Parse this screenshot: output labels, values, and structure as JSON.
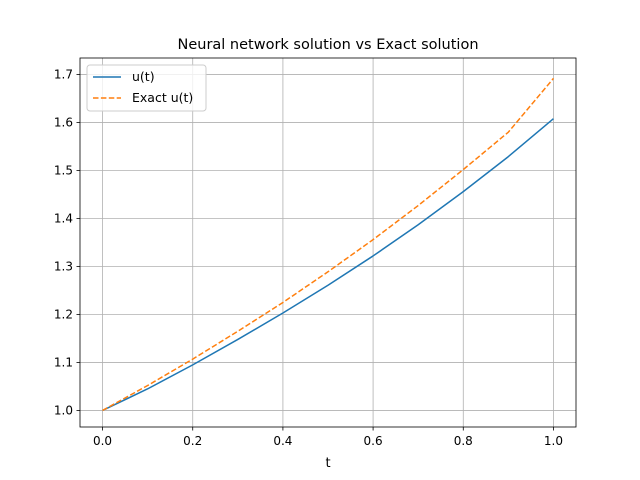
{
  "chart_data": {
    "type": "line",
    "title": "Neural network solution vs Exact solution",
    "xlabel": "t",
    "ylabel": "",
    "xlim": [
      -0.05,
      1.05
    ],
    "ylim": [
      0.9655,
      1.7345
    ],
    "xticks": [
      0.0,
      0.2,
      0.4,
      0.6,
      0.8,
      1.0
    ],
    "xtick_labels": [
      "0.0",
      "0.2",
      "0.4",
      "0.6",
      "0.8",
      "1.0"
    ],
    "yticks": [
      1.0,
      1.1,
      1.2,
      1.3,
      1.4,
      1.5,
      1.6,
      1.7
    ],
    "ytick_labels": [
      "1.0",
      "1.1",
      "1.2",
      "1.3",
      "1.4",
      "1.5",
      "1.6",
      "1.7"
    ],
    "grid": true,
    "legend_position": "top-left",
    "series": [
      {
        "name": "u(t)",
        "color": "#1f77b4",
        "style": "solid",
        "x": [
          0.0,
          0.1,
          0.2,
          0.3,
          0.4,
          0.5,
          0.6,
          0.7,
          0.8,
          0.9,
          1.0
        ],
        "y": [
          1.0,
          1.045,
          1.095,
          1.148,
          1.203,
          1.261,
          1.322,
          1.387,
          1.456,
          1.529,
          1.608
        ]
      },
      {
        "name": "Exact u(t)",
        "color": "#ff7f0e",
        "style": "dashed",
        "x": [
          0.0,
          0.1,
          0.2,
          0.3,
          0.4,
          0.5,
          0.6,
          0.7,
          0.8,
          0.9,
          1.0
        ],
        "y": [
          1.0,
          1.052,
          1.107,
          1.165,
          1.225,
          1.289,
          1.356,
          1.427,
          1.502,
          1.58,
          1.692
        ]
      }
    ]
  }
}
